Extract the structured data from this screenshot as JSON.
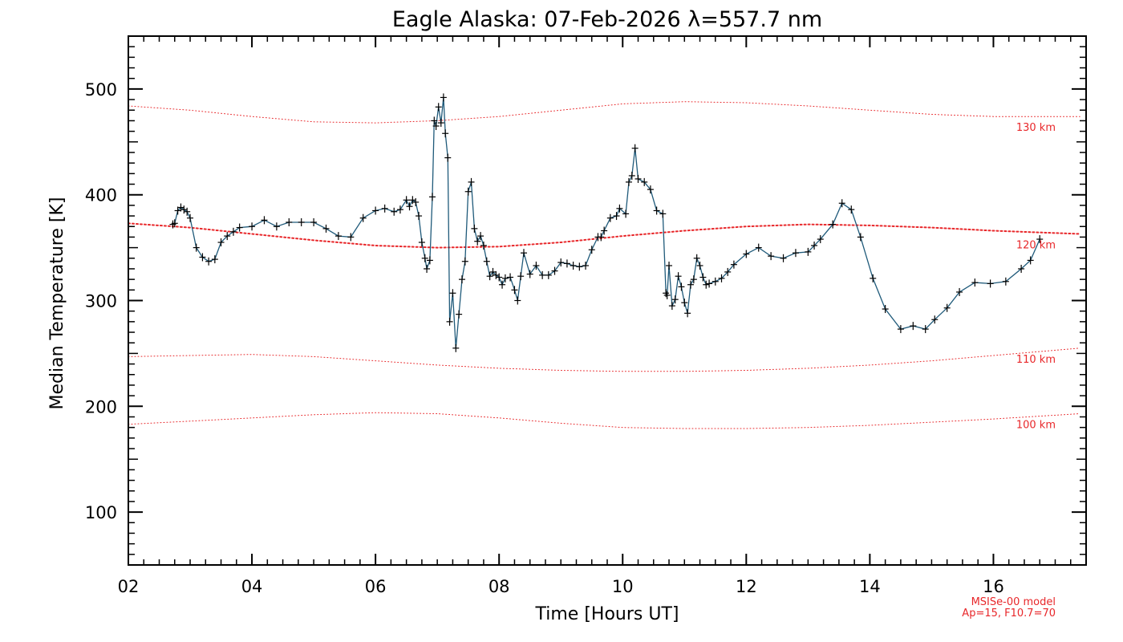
{
  "chart_data": {
    "type": "line",
    "title": "Eagle Alaska: 07-Feb-2026 λ=557.7 nm",
    "xlabel": "Time [Hours UT]",
    "ylabel": "Median Temperature [K]",
    "xlim": [
      2,
      17.5
    ],
    "ylim": [
      50,
      550
    ],
    "x_ticks": [
      2,
      4,
      6,
      8,
      10,
      12,
      14,
      16
    ],
    "x_tick_labels": [
      "02",
      "04",
      "06",
      "08",
      "10",
      "12",
      "14",
      "16"
    ],
    "y_ticks": [
      100,
      200,
      300,
      400,
      500
    ],
    "y_tick_labels": [
      "100",
      "200",
      "300",
      "400",
      "500"
    ],
    "grid": false,
    "line_color": "#1f5a7a",
    "marker_color": "#000000",
    "model_color": "#e8272a",
    "model_note": [
      "MSISe-00 model",
      "Ap=15, F10.7=70"
    ],
    "series": [
      {
        "x": [
          2.72,
          2.75,
          2.8,
          2.85,
          2.9,
          2.95,
          3.0,
          3.1,
          3.2,
          3.3,
          3.4,
          3.5,
          3.6,
          3.7,
          3.8,
          4.0,
          4.2,
          4.4,
          4.6,
          4.8,
          5.0,
          5.2,
          5.4,
          5.6,
          5.8,
          6.0,
          6.15,
          6.3,
          6.4,
          6.5,
          6.55,
          6.6,
          6.65,
          6.7,
          6.75,
          6.8,
          6.83,
          6.88,
          6.92,
          6.95,
          6.98,
          7.02,
          7.06,
          7.1,
          7.13,
          7.17,
          7.2,
          7.25,
          7.3,
          7.35,
          7.4,
          7.45,
          7.5,
          7.55,
          7.6,
          7.65,
          7.7,
          7.75,
          7.8,
          7.85,
          7.9,
          7.95,
          8.0,
          8.05,
          8.1,
          8.18,
          8.25,
          8.3,
          8.35,
          8.4,
          8.5,
          8.6,
          8.7,
          8.8,
          8.9,
          9.0,
          9.1,
          9.2,
          9.3,
          9.4,
          9.5,
          9.6,
          9.65,
          9.7,
          9.8,
          9.9,
          9.95,
          10.05,
          10.1,
          10.15,
          10.2,
          10.25,
          10.35,
          10.45,
          10.55,
          10.65,
          10.7,
          10.72,
          10.75,
          10.8,
          10.85,
          10.9,
          10.95,
          11.0,
          11.05,
          11.1,
          11.15,
          11.2,
          11.25,
          11.3,
          11.35,
          11.4,
          11.5,
          11.6,
          11.7,
          11.8,
          12.0,
          12.2,
          12.4,
          12.6,
          12.8,
          13.0,
          13.1,
          13.2,
          13.4,
          13.55,
          13.7,
          13.85,
          14.05,
          14.25,
          14.5,
          14.7,
          14.9,
          15.05,
          15.25,
          15.45,
          15.7,
          15.95,
          16.2,
          16.45,
          16.6,
          16.75
        ],
        "values": [
          372,
          373,
          385,
          388,
          386,
          384,
          378,
          350,
          341,
          337,
          339,
          355,
          361,
          365,
          369,
          370,
          376,
          370,
          374,
          374,
          374,
          368,
          361,
          360,
          378,
          385,
          387,
          384,
          386,
          395,
          389,
          395,
          393,
          380,
          355,
          340,
          330,
          338,
          398,
          470,
          465,
          483,
          468,
          492,
          458,
          435,
          280,
          307,
          255,
          287,
          320,
          337,
          403,
          412,
          368,
          356,
          361,
          352,
          337,
          323,
          327,
          324,
          322,
          315,
          321,
          322,
          310,
          300,
          323,
          345,
          325,
          333,
          324,
          324,
          328,
          336,
          335,
          333,
          332,
          333,
          348,
          360,
          360,
          366,
          378,
          380,
          387,
          382,
          412,
          418,
          444,
          415,
          412,
          405,
          385,
          382,
          307,
          305,
          333,
          295,
          301,
          323,
          313,
          298,
          288,
          315,
          320,
          340,
          333,
          322,
          315,
          316,
          318,
          321,
          327,
          334,
          344,
          350,
          342,
          340,
          345,
          346,
          352,
          358,
          372,
          392,
          386,
          360,
          321,
          292,
          273,
          276,
          273,
          282,
          293,
          308,
          317,
          316,
          318,
          330,
          338,
          358
        ]
      }
    ],
    "model_curves": [
      {
        "label": "130 km",
        "x": [
          2.0,
          3.0,
          4.0,
          5.0,
          6.0,
          7.0,
          8.0,
          9.0,
          10.0,
          11.0,
          12.0,
          13.0,
          14.0,
          15.0,
          16.0,
          17.4
        ],
        "values": [
          484,
          480,
          474,
          469,
          468,
          470,
          474,
          480,
          486,
          488,
          487,
          484,
          480,
          476,
          474,
          474
        ]
      },
      {
        "label": "120 km",
        "x": [
          2.0,
          3.0,
          4.0,
          5.0,
          6.0,
          7.0,
          8.0,
          9.0,
          10.0,
          11.0,
          12.0,
          13.0,
          14.0,
          15.0,
          16.0,
          17.4
        ],
        "values": [
          373,
          369,
          363,
          357,
          352,
          350,
          351,
          355,
          361,
          366,
          370,
          372,
          371,
          369,
          366,
          363
        ]
      },
      {
        "label": "110 km",
        "x": [
          2.0,
          3.0,
          4.0,
          5.0,
          6.0,
          7.0,
          8.0,
          9.0,
          10.0,
          11.0,
          12.0,
          13.0,
          14.0,
          15.0,
          16.0,
          17.4
        ],
        "values": [
          247,
          248,
          249,
          247,
          243,
          239,
          236,
          234,
          233,
          233,
          234,
          236,
          239,
          243,
          248,
          255
        ]
      },
      {
        "label": "100 km",
        "x": [
          2.0,
          3.0,
          4.0,
          5.0,
          6.0,
          7.0,
          8.0,
          9.0,
          10.0,
          11.0,
          12.0,
          13.0,
          14.0,
          15.0,
          16.0,
          17.4
        ],
        "values": [
          183,
          186,
          189,
          192,
          194,
          193,
          189,
          184,
          180,
          179,
          179,
          180,
          182,
          185,
          188,
          193
        ]
      }
    ]
  }
}
